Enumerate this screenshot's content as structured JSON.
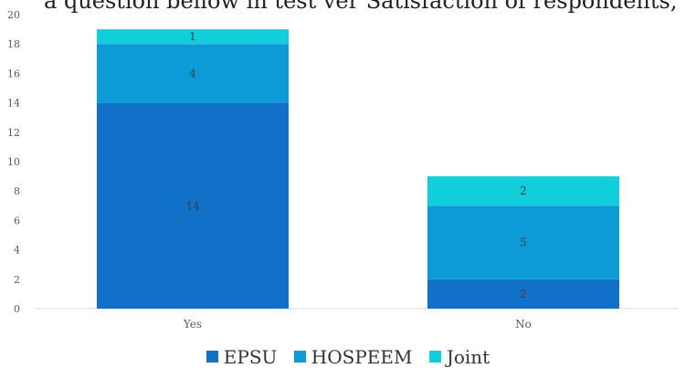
{
  "top_caption": "a question bellow in test ver Satisfaction of respondents,",
  "chart_data": {
    "type": "bar",
    "stacked": true,
    "categories": [
      "Yes",
      "No"
    ],
    "series": [
      {
        "name": "EPSU",
        "values": [
          14,
          2
        ],
        "color": "#1170C8"
      },
      {
        "name": "HOSPEEM",
        "values": [
          4,
          5
        ],
        "color": "#0D9BD8"
      },
      {
        "name": "Joint",
        "values": [
          1,
          2
        ],
        "color": "#10CFDA"
      }
    ],
    "ylim": [
      0,
      20
    ],
    "yticks": [
      0,
      2,
      4,
      6,
      8,
      10,
      12,
      14,
      16,
      18,
      20
    ],
    "grid": false,
    "legend": "bottom",
    "title": "",
    "xlabel": "",
    "ylabel": ""
  }
}
